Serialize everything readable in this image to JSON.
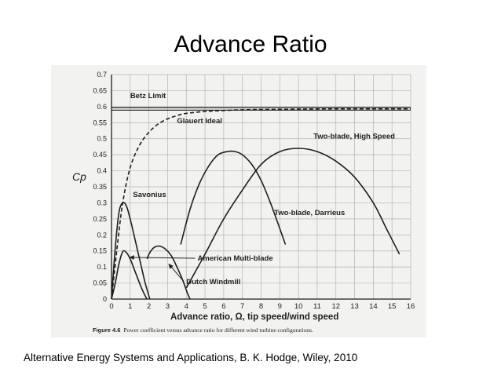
{
  "slide": {
    "title": "Advance Ratio",
    "caption": "Alternative Energy Systems and Applications, B. K. Hodge, Wiley, 2010"
  },
  "colors": {
    "ink": "#1e1e1e",
    "grid": "#b4b4b4",
    "paper": "#f2f2f0"
  },
  "chart_data": {
    "type": "line",
    "title": "",
    "xlabel": "Advance ratio, Ω, tip speed/wind speed",
    "ylabel": "Cp",
    "figure_caption_label": "Figure 4.6",
    "figure_caption_text": "Power coefficient versus advance ratio for different wind turbine configurations.",
    "xlim": [
      0,
      16
    ],
    "ylim": [
      0,
      0.7
    ],
    "x_ticks": [
      0,
      1,
      2,
      3,
      4,
      5,
      6,
      7,
      8,
      9,
      10,
      11,
      12,
      13,
      14,
      15,
      16
    ],
    "x_tick_labels": [
      "0",
      "1",
      "2",
      "3",
      "4",
      "5",
      "6",
      "7",
      "8",
      "9",
      "10",
      "11",
      "12",
      "13",
      "14",
      "15",
      "16"
    ],
    "y_ticks": [
      0,
      0.05,
      0.1,
      0.15,
      0.2,
      0.25,
      0.3,
      0.35,
      0.4,
      0.45,
      0.5,
      0.55,
      0.6,
      0.65,
      0.7
    ],
    "y_tick_labels": [
      "0",
      "0.05",
      "0.1",
      "0.15",
      "0.2",
      "0.25",
      "0.3",
      "0.35",
      "0.4",
      "0.45",
      "0.5",
      "0.55",
      "0.6",
      "0.65",
      "0.7"
    ],
    "grid": true,
    "series": [
      {
        "name": "Betz Limit",
        "style": "double",
        "x": [
          0,
          16
        ],
        "y": [
          0.593,
          0.593
        ],
        "label_at": [
          1,
          0.627
        ]
      },
      {
        "name": "Glauert Ideal",
        "style": "dashed",
        "x": [
          0,
          0.3,
          0.6,
          1,
          1.5,
          2,
          2.5,
          3,
          3.5,
          4,
          5,
          6,
          7,
          8,
          10,
          12,
          16
        ],
        "y": [
          0,
          0.16,
          0.3,
          0.41,
          0.48,
          0.52,
          0.546,
          0.562,
          0.572,
          0.579,
          0.585,
          0.588,
          0.59,
          0.591,
          0.592,
          0.593,
          0.593
        ],
        "label_at": [
          3.5,
          0.548
        ]
      },
      {
        "name": "Savonius",
        "style": "solid",
        "x": [
          0,
          0.2,
          0.4,
          0.6,
          0.8,
          1,
          1.2,
          1.4,
          1.6,
          1.8,
          2,
          2.05
        ],
        "y": [
          0,
          0.16,
          0.27,
          0.3,
          0.29,
          0.25,
          0.2,
          0.15,
          0.1,
          0.05,
          0.01,
          0
        ],
        "label_at": [
          1.15,
          0.318
        ]
      },
      {
        "name": "American Multi-blade",
        "style": "solid",
        "x": [
          0,
          0.2,
          0.4,
          0.6,
          0.8,
          1,
          1.2,
          1.4,
          1.6,
          1.8,
          1.9
        ],
        "y": [
          0,
          0.05,
          0.11,
          0.148,
          0.145,
          0.125,
          0.095,
          0.065,
          0.035,
          0.01,
          0
        ],
        "label_at": [
          4.6,
          0.12
        ],
        "arrow_to": [
          0.95,
          0.13
        ]
      },
      {
        "name": "Dutch Windmill",
        "style": "solid",
        "x": [
          1.9,
          2.05,
          2.3,
          2.6,
          2.9,
          3.2,
          3.5,
          3.8,
          4.05,
          4.2
        ],
        "y": [
          0.125,
          0.145,
          0.162,
          0.165,
          0.155,
          0.135,
          0.1,
          0.06,
          0.02,
          0
        ],
        "label_at": [
          4,
          0.047
        ],
        "arrow_to": [
          3.05,
          0.11
        ]
      },
      {
        "name": "Two-blade, Darrieus",
        "style": "solid",
        "x": [
          3.7,
          4.2,
          4.7,
          5.2,
          5.7,
          6.2,
          6.6,
          7,
          7.5,
          8,
          8.5,
          9,
          9.3
        ],
        "y": [
          0.17,
          0.28,
          0.36,
          0.415,
          0.45,
          0.46,
          0.46,
          0.45,
          0.42,
          0.37,
          0.3,
          0.22,
          0.17
        ],
        "label_at": [
          8.7,
          0.262
        ]
      },
      {
        "name": "Two-blade, High Speed",
        "style": "solid",
        "x": [
          4,
          5,
          6,
          7,
          8,
          9,
          10,
          11,
          12,
          13,
          14,
          14.7,
          15.4
        ],
        "y": [
          0.035,
          0.14,
          0.25,
          0.34,
          0.42,
          0.46,
          0.47,
          0.46,
          0.43,
          0.38,
          0.3,
          0.22,
          0.14
        ],
        "label_at": [
          10.8,
          0.5
        ]
      }
    ]
  }
}
